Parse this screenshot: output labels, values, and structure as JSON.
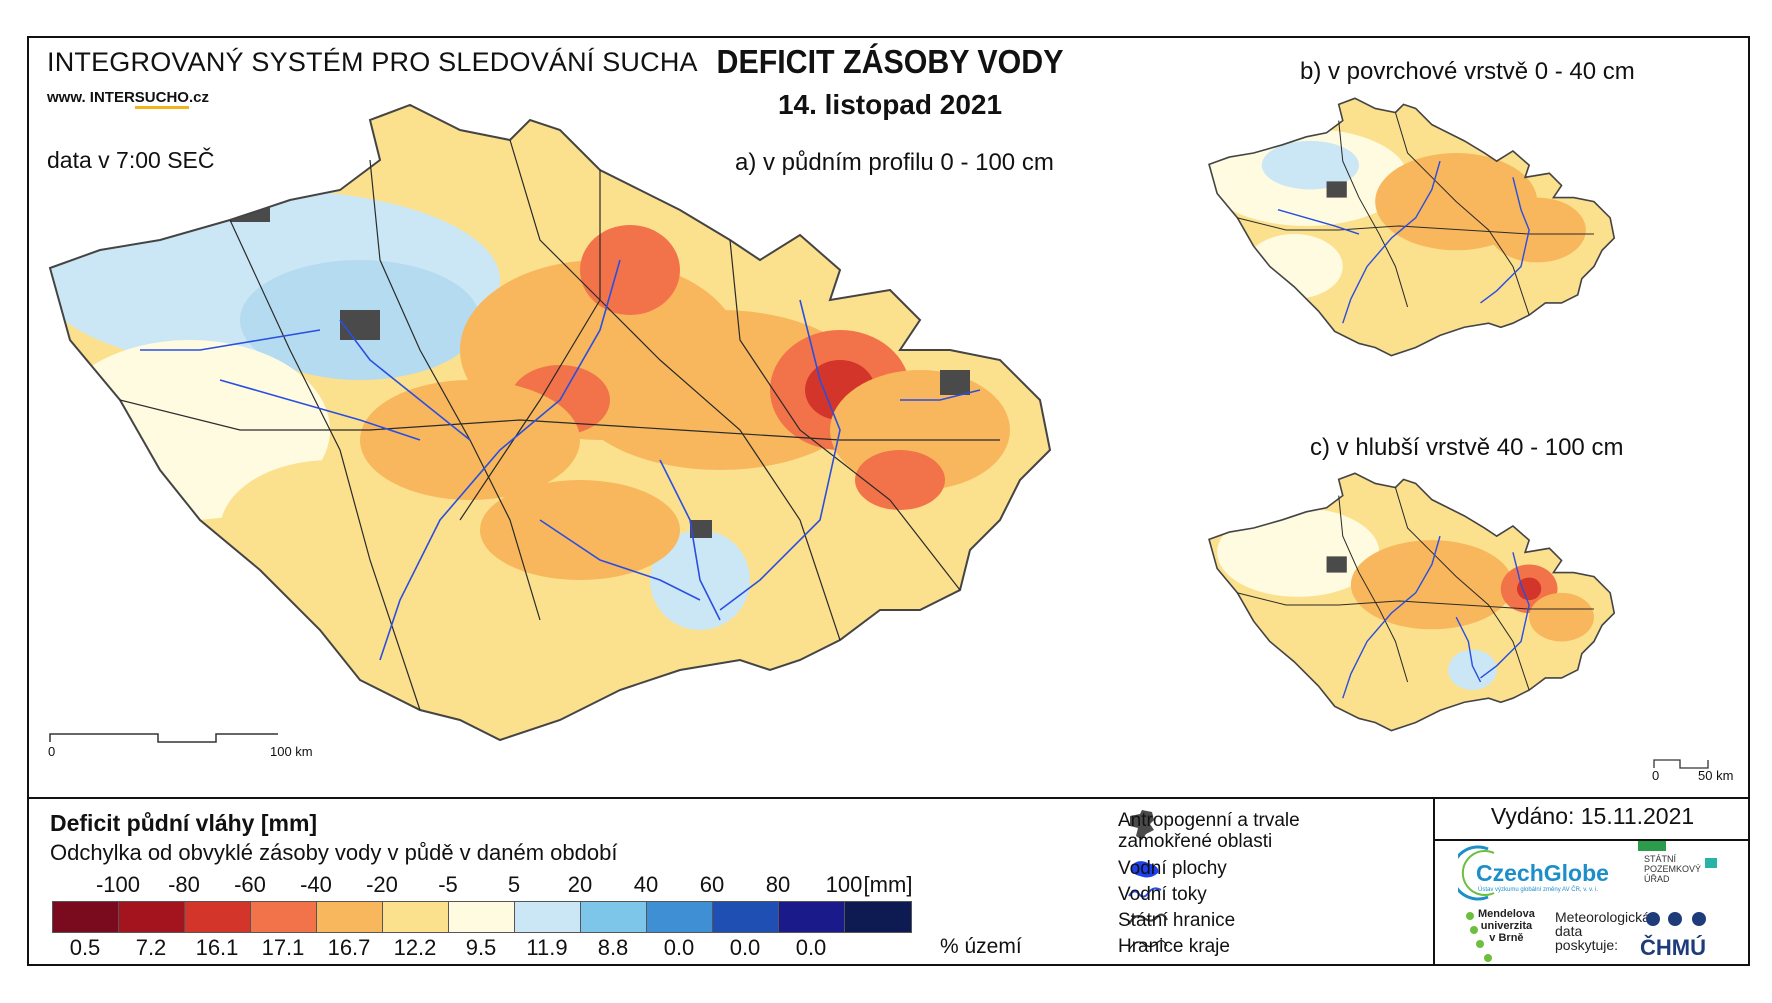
{
  "header": {
    "system_title": "INTEGROVANÝ SYSTÉM PRO SLEDOVÁNÍ SUCHA",
    "website_prefix": "www. INTER",
    "website_highlight": "SUCHO",
    "website_suffix": ".cz",
    "data_time": "data v 7:00 SEČ",
    "main_title": "DEFICIT ZÁSOBY VODY",
    "date": "14. listopad 2021"
  },
  "maps": {
    "a_title": "a) v půdním profilu 0 - 100 cm",
    "b_title": "b) v povrchové vrstvě 0 - 40 cm",
    "c_title": "c) v hlubší vrstvě 40 - 100 cm",
    "a_scale_start": "0",
    "a_scale_end": "100 km",
    "small_scale_start": "0",
    "small_scale_end": "50 km"
  },
  "legend": {
    "title": "Deficit půdní vláhy  [mm]",
    "subtitle": "Odchylka od obvyklé zásoby vody v půdě v daném období",
    "thresholds": [
      "-100",
      "-80",
      "-60",
      "-40",
      "-20",
      "-5",
      "5",
      "20",
      "40",
      "60",
      "80",
      "100"
    ],
    "unit": "[mm]",
    "classes": [
      {
        "color": "#7a0a1e",
        "percent": "0.5"
      },
      {
        "color": "#a3141f",
        "percent": "7.2"
      },
      {
        "color": "#d4352a",
        "percent": "16.1"
      },
      {
        "color": "#f2734a",
        "percent": "17.1"
      },
      {
        "color": "#f8b75c",
        "percent": "16.7"
      },
      {
        "color": "#fbe08e",
        "percent": "12.2"
      },
      {
        "color": "#fffbe0",
        "percent": "9.5"
      },
      {
        "color": "#cbe7f5",
        "percent": "11.9"
      },
      {
        "color": "#7ec6e9",
        "percent": "8.8"
      },
      {
        "color": "#3e8fd3",
        "percent": "0.0"
      },
      {
        "color": "#1f4fb2",
        "percent": "0.0"
      },
      {
        "color": "#1b1a8a",
        "percent": "0.0"
      },
      {
        "color": "#0e1a52",
        "percent": ""
      }
    ],
    "percent_unit": "% území"
  },
  "key": {
    "anthropogenic": "Antropogenní a trvale zamokřené oblasti",
    "anthropogenic_line1": "Antropogenní a trvale",
    "anthropogenic_line2": "zamokřené oblasti",
    "water_bodies": "Vodní plochy",
    "rivers": "Vodní toky",
    "state_border": "Státní hranice",
    "region_border": "Hranice kraje"
  },
  "footer": {
    "issued": "Vydáno: 15.11.2021",
    "czechglobe": "CzechGlobe",
    "czechglobe_small": "Ústav výzkumu globální změny AV ČR, v. v. i.",
    "spu_line1": "STÁTNÍ",
    "spu_line2": "POZEMKOVÝ",
    "spu_line3": "ÚŘAD",
    "mendel_line1": "Mendelova",
    "mendel_line2": "univerzita",
    "mendel_line3": "v Brně",
    "meteo_line1": "Meteorologická",
    "meteo_line2": "data",
    "meteo_line3": "poskytuje:",
    "chmu": "ČHMÚ"
  }
}
